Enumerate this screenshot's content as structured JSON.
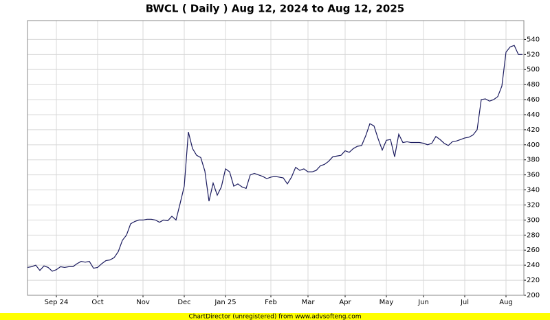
{
  "chart_data": {
    "type": "line",
    "title": "BWCL ( Daily ) Aug 12, 2024 to Aug 12, 2025",
    "footer": "ChartDirector (unregistered) from www.advsofteng.com",
    "color": "#1a1a5e",
    "grid": true,
    "categories": [
      null,
      null,
      null,
      null,
      null,
      null,
      null,
      "Sep 24",
      null,
      null,
      null,
      null,
      null,
      null,
      null,
      null,
      null,
      "Oct",
      null,
      null,
      null,
      null,
      null,
      null,
      null,
      null,
      null,
      null,
      "Nov",
      null,
      null,
      null,
      null,
      null,
      null,
      null,
      null,
      null,
      "Dec",
      null,
      null,
      null,
      null,
      null,
      null,
      null,
      null,
      null,
      "Jan 25",
      null,
      null,
      null,
      null,
      null,
      null,
      null,
      null,
      null,
      null,
      "Feb",
      null,
      null,
      null,
      null,
      null,
      null,
      null,
      null,
      "Mar",
      null,
      null,
      null,
      null,
      null,
      null,
      null,
      null,
      "Apr",
      null,
      null,
      null,
      null,
      null,
      null,
      null,
      null,
      null,
      "May",
      null,
      null,
      null,
      null,
      null,
      null,
      null,
      null,
      "Jun",
      null,
      null,
      null,
      null,
      null,
      null,
      null,
      null,
      null,
      "Jul",
      null,
      null,
      null,
      null,
      null,
      null,
      null,
      null,
      null,
      "Aug",
      null,
      null,
      null,
      null
    ],
    "values": [
      237,
      238,
      240,
      233,
      239,
      237,
      232,
      234,
      238,
      237,
      238,
      238,
      242,
      245,
      244,
      245,
      236,
      237,
      242,
      246,
      247,
      250,
      258,
      273,
      280,
      295,
      298,
      300,
      300,
      301,
      301,
      300,
      297,
      300,
      299,
      305,
      300,
      322,
      345,
      417,
      395,
      386,
      383,
      365,
      325,
      349,
      333,
      344,
      368,
      364,
      345,
      348,
      344,
      342,
      360,
      362,
      360,
      358,
      355,
      357,
      358,
      357,
      356,
      348,
      357,
      370,
      366,
      368,
      364,
      364,
      366,
      372,
      374,
      378,
      384,
      385,
      386,
      392,
      390,
      395,
      398,
      399,
      412,
      428,
      425,
      408,
      393,
      406,
      407,
      384,
      414,
      403,
      404,
      403,
      403,
      403,
      402,
      400,
      402,
      411,
      407,
      402,
      399,
      404,
      405,
      407,
      409,
      410,
      413,
      420,
      460,
      461,
      458,
      460,
      464,
      478,
      523,
      530,
      532,
      520,
      520
    ],
    "ylim": [
      200,
      565
    ],
    "yticks": [
      200,
      220,
      240,
      260,
      280,
      300,
      320,
      340,
      360,
      380,
      400,
      420,
      440,
      460,
      480,
      500,
      520,
      540
    ]
  }
}
